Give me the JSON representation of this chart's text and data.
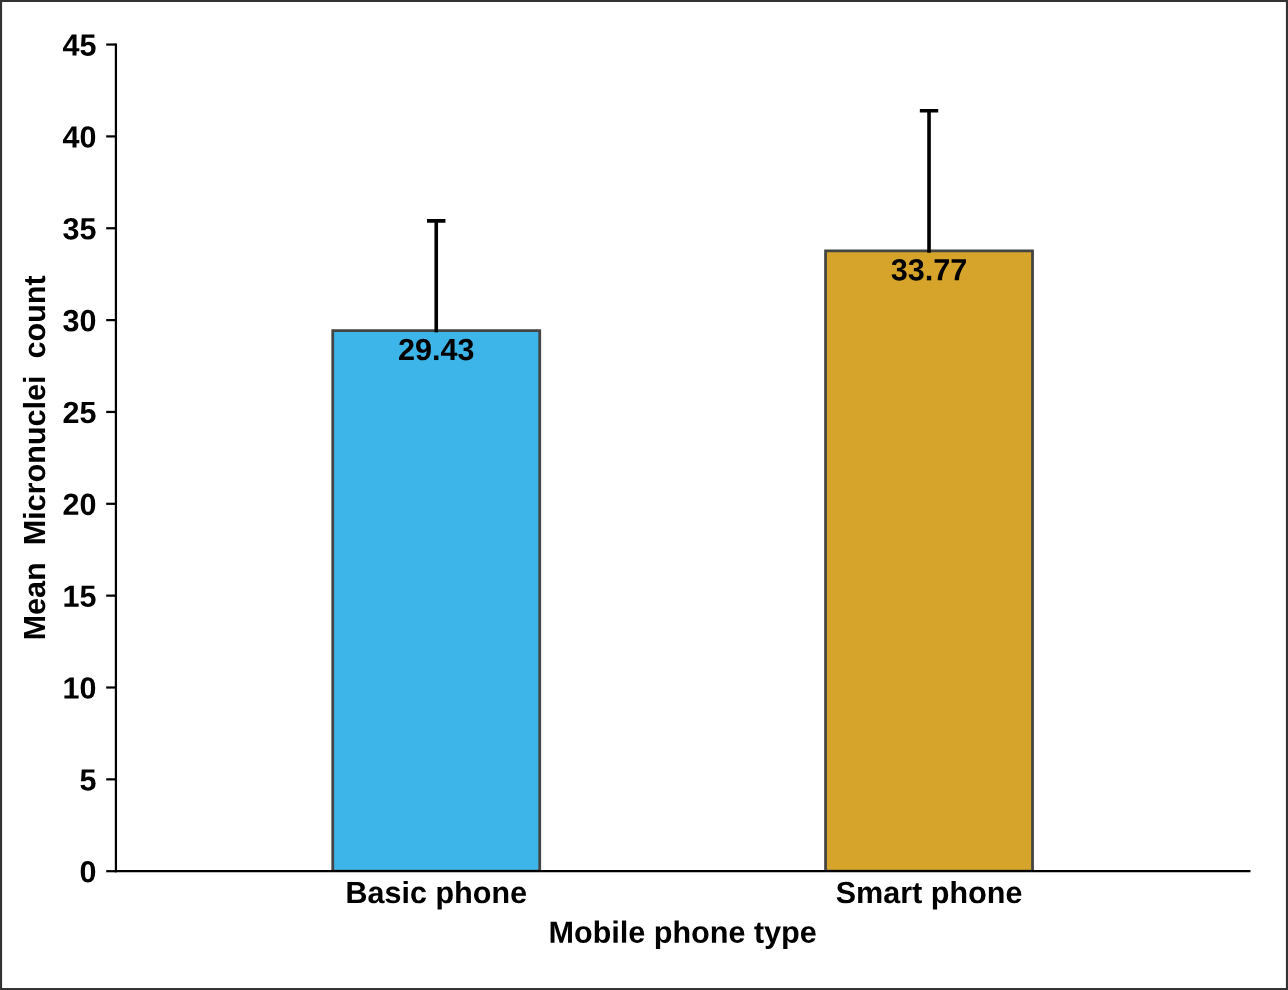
{
  "chart_data": {
    "type": "bar",
    "xlabel": "Mobile phone type",
    "ylabel": "Mean  Micronuclei  count",
    "categories": [
      "Basic phone",
      "Smart phone"
    ],
    "values": [
      29.43,
      33.77
    ],
    "colors": [
      "#3db5e8",
      "#d6a42a"
    ],
    "errors": [
      [
        29.43,
        35.4
      ],
      [
        33.77,
        41.4
      ]
    ],
    "data_labels": true,
    "ylim": [
      0,
      45
    ],
    "yticks": [
      0,
      5,
      10,
      15,
      20,
      25,
      30,
      35,
      40,
      45
    ],
    "grid": false
  }
}
